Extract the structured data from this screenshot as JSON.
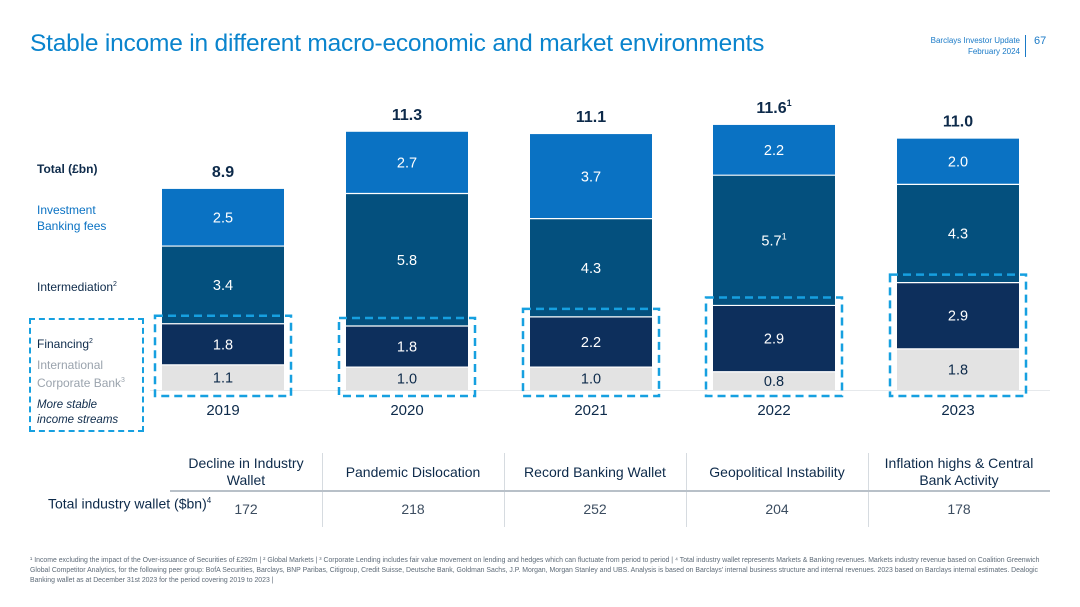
{
  "header": {
    "title": "Stable income in different macro-economic and market environments",
    "report_line1": "Barclays Investor Update",
    "report_line2": "February 2024",
    "page_number": "67"
  },
  "legend": {
    "total_label": "Total (£bn)",
    "investment_banking": "Investment Banking fees",
    "intermediation": "Intermediation",
    "intermediation_note": "2",
    "financing": "Financing",
    "financing_note": "2",
    "icb": "International Corporate Bank",
    "icb_note": "3",
    "stable": "More stable income streams"
  },
  "chart_data": {
    "type": "bar",
    "stacked": true,
    "categories": [
      "2019",
      "2020",
      "2021",
      "2022",
      "2023"
    ],
    "series": [
      {
        "name": "International Corporate Bank",
        "values": [
          1.1,
          1.0,
          1.0,
          0.8,
          1.8
        ],
        "color": "#e3e3e3"
      },
      {
        "name": "Financing",
        "values": [
          1.8,
          1.8,
          2.2,
          2.9,
          2.9
        ],
        "color": "#0d2f5c"
      },
      {
        "name": "Intermediation",
        "values": [
          3.4,
          5.8,
          4.3,
          5.7,
          4.3
        ],
        "color": "#04507e"
      },
      {
        "name": "Investment Banking fees",
        "values": [
          2.5,
          2.7,
          3.7,
          2.2,
          2.0
        ],
        "color": "#0a72c3"
      }
    ],
    "totals": [
      8.9,
      11.3,
      11.1,
      11.6,
      11.0
    ],
    "total_notes": [
      "",
      "",
      "",
      "1",
      ""
    ],
    "segment_notes": {
      "Intermediation": [
        "",
        "",
        "",
        "1",
        ""
      ]
    },
    "highlight": "More stable income streams",
    "highlight_color": "#16a0e0"
  },
  "table": {
    "row_label": "Total industry wallet ($bn)",
    "row_label_note": "4",
    "events": [
      "Decline in Industry Wallet",
      "Pandemic Dislocation",
      "Record Banking Wallet",
      "Geopolitical Instability",
      "Inflation highs & Central Bank Activity"
    ],
    "values": [
      "172",
      "218",
      "252",
      "204",
      "178"
    ]
  },
  "footnotes": "¹ Income excluding the impact of the Over-issuance of Securities of £292m | ² Global Markets | ³ Corporate Lending includes fair value movement on lending and hedges which can fluctuate from period to period | ⁴ Total industry wallet represents Markets & Banking revenues. Markets industry revenue based on Coalition Greenwich Global Competitor Analytics, for the following peer group: BofA Securities, Barclays, BNP Paribas, Citigroup, Credit Suisse, Deutsche Bank, Goldman Sachs, J.P. Morgan, Morgan Stanley and UBS. Analysis is based on Barclays' internal business structure and internal revenues. 2023 based on Barclays internal estimates. Dealogic Banking wallet as at December 31st 2023 for the period covering 2019 to 2023 |"
}
